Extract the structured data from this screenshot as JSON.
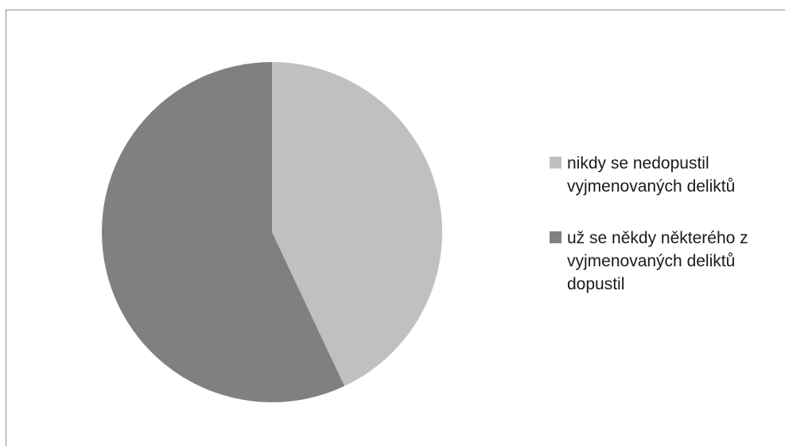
{
  "chart_data": {
    "type": "pie",
    "title": "",
    "start_angle_deg": 0,
    "direction": "clockwise",
    "slices": [
      {
        "label": "nikdy se nedopustil vyjmenovaných deliktů",
        "value": 43,
        "color": "#c0c0c0"
      },
      {
        "label": "už se někdy některého z vyjmenovaných deliktů dopustil",
        "value": 57,
        "color": "#808080"
      }
    ],
    "legend_position": "right"
  }
}
